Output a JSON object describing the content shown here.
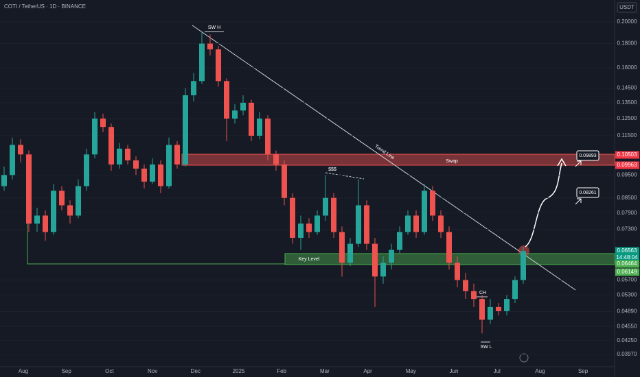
{
  "chart_data": {
    "type": "candlestick",
    "title": "COTI / TetherUS · 1D · BINANCE",
    "currency": "USDT",
    "log_scale": true,
    "up_color": "#26a69a",
    "down_color": "#ef5350",
    "ylim": [
      0.0374,
      0.2225
    ],
    "yticks": [
      {
        "value": 0.2,
        "label": "0.20000"
      },
      {
        "value": 0.18,
        "label": "0.18000"
      },
      {
        "value": 0.16,
        "label": "0.16000"
      },
      {
        "value": 0.145,
        "label": "0.14500"
      },
      {
        "value": 0.135,
        "label": "0.13500"
      },
      {
        "value": 0.125,
        "label": "0.12500"
      },
      {
        "value": 0.115,
        "label": "0.11500"
      },
      {
        "value": 0.095,
        "label": "0.09500"
      },
      {
        "value": 0.085,
        "label": "0.08500"
      },
      {
        "value": 0.079,
        "label": "0.07900"
      },
      {
        "value": 0.073,
        "label": "0.07300"
      },
      {
        "value": 0.057,
        "label": "0.05700"
      },
      {
        "value": 0.053,
        "label": "0.05300"
      },
      {
        "value": 0.0489,
        "label": "0.04890"
      },
      {
        "value": 0.0455,
        "label": "0.04550"
      },
      {
        "value": 0.0425,
        "label": "0.04250"
      },
      {
        "value": 0.0397,
        "label": "0.03970"
      }
    ],
    "xlabels": [
      "Aug",
      "Sep",
      "Oct",
      "Nov",
      "Dec",
      "2025",
      "Feb",
      "Mar",
      "Apr",
      "May",
      "Jun",
      "Jul",
      "Aug",
      "Sep"
    ],
    "open": [
      0.09,
      0.095,
      0.11,
      0.105,
      0.075,
      0.078,
      0.072,
      0.088,
      0.082,
      0.078,
      0.09,
      0.105,
      0.125,
      0.12,
      0.1,
      0.108,
      0.102,
      0.098,
      0.092,
      0.1,
      0.09,
      0.11,
      0.1,
      0.14,
      0.15,
      0.18,
      0.175,
      0.15,
      0.125,
      0.13,
      0.135,
      0.115,
      0.125,
      0.105,
      0.1,
      0.085,
      0.07,
      0.075,
      0.072,
      0.078,
      0.085,
      0.072,
      0.062,
      0.068,
      0.082,
      0.068,
      0.058,
      0.062,
      0.066,
      0.072,
      0.078,
      0.072,
      0.088,
      0.078,
      0.072,
      0.062,
      0.057,
      0.054,
      0.052,
      0.047,
      0.05,
      0.049,
      0.052,
      0.057
    ],
    "high": [
      0.099,
      0.114,
      0.113,
      0.107,
      0.081,
      0.08,
      0.091,
      0.09,
      0.084,
      0.093,
      0.108,
      0.129,
      0.128,
      0.122,
      0.111,
      0.11,
      0.104,
      0.1,
      0.103,
      0.102,
      0.114,
      0.112,
      0.145,
      0.156,
      0.19,
      0.188,
      0.178,
      0.152,
      0.134,
      0.14,
      0.137,
      0.129,
      0.127,
      0.107,
      0.102,
      0.087,
      0.078,
      0.077,
      0.08,
      0.095,
      0.087,
      0.074,
      0.07,
      0.093,
      0.084,
      0.07,
      0.064,
      0.068,
      0.074,
      0.08,
      0.08,
      0.091,
      0.09,
      0.08,
      0.074,
      0.064,
      0.059,
      0.056,
      0.053,
      0.052,
      0.051,
      0.053,
      0.058,
      0.067
    ],
    "low": [
      0.088,
      0.093,
      0.101,
      0.072,
      0.072,
      0.069,
      0.071,
      0.08,
      0.075,
      0.077,
      0.088,
      0.103,
      0.117,
      0.097,
      0.098,
      0.1,
      0.095,
      0.089,
      0.091,
      0.087,
      0.089,
      0.098,
      0.099,
      0.136,
      0.148,
      0.17,
      0.146,
      0.112,
      0.122,
      0.127,
      0.112,
      0.113,
      0.102,
      0.097,
      0.082,
      0.068,
      0.066,
      0.07,
      0.071,
      0.076,
      0.07,
      0.058,
      0.061,
      0.067,
      0.066,
      0.05,
      0.056,
      0.06,
      0.065,
      0.071,
      0.07,
      0.071,
      0.076,
      0.07,
      0.06,
      0.055,
      0.052,
      0.05,
      0.044,
      0.046,
      0.048,
      0.048,
      0.051,
      0.056
    ],
    "close": [
      0.095,
      0.11,
      0.105,
      0.075,
      0.078,
      0.072,
      0.088,
      0.082,
      0.078,
      0.09,
      0.105,
      0.125,
      0.12,
      0.1,
      0.108,
      0.102,
      0.098,
      0.092,
      0.1,
      0.09,
      0.11,
      0.1,
      0.14,
      0.15,
      0.18,
      0.175,
      0.15,
      0.125,
      0.13,
      0.135,
      0.115,
      0.125,
      0.105,
      0.1,
      0.085,
      0.07,
      0.075,
      0.072,
      0.078,
      0.085,
      0.072,
      0.062,
      0.068,
      0.082,
      0.068,
      0.058,
      0.062,
      0.066,
      0.072,
      0.078,
      0.072,
      0.088,
      0.078,
      0.072,
      0.062,
      0.057,
      0.054,
      0.052,
      0.047,
      0.05,
      0.049,
      0.052,
      0.057,
      0.0656
    ],
    "annotations": [
      "SW H",
      "Trend Line",
      "Swap",
      "$$$",
      "Key Level",
      "CH",
      "SW L",
      "0.09893",
      "0.08261"
    ],
    "price_labels": [
      "0.10503",
      "0.09963",
      "0.06563",
      "14:48:04",
      "0.06464",
      "0.06149"
    ]
  }
}
